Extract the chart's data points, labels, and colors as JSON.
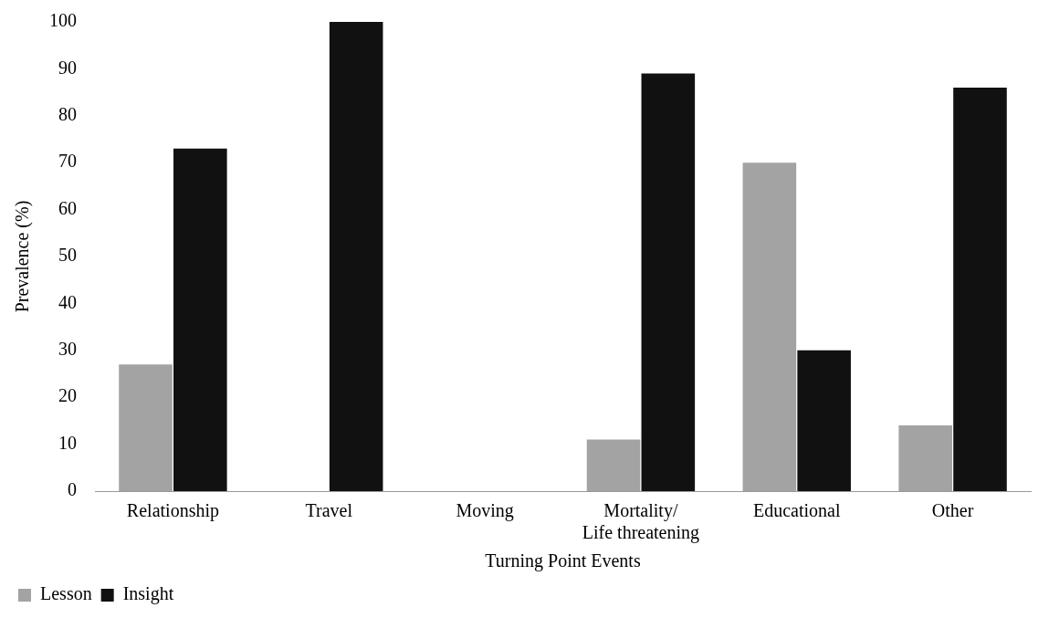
{
  "chart_data": {
    "type": "bar",
    "xlabel": "Turning Point Events",
    "ylabel": "Prevalence (%)",
    "categories": [
      "Relationship",
      "Travel",
      "Moving",
      "Mortality/ Life threatening",
      "Educational",
      "Other"
    ],
    "series": [
      {
        "name": "Lesson",
        "color": "#a3a3a3",
        "values": [
          27,
          0,
          0,
          11,
          70,
          14
        ]
      },
      {
        "name": "Insight",
        "color": "#111111",
        "values": [
          73,
          100,
          0,
          89,
          30,
          86
        ]
      }
    ],
    "ylim": [
      0,
      100
    ],
    "yticks": [
      0,
      10,
      20,
      30,
      40,
      50,
      60,
      70,
      80,
      90,
      100
    ],
    "grid": false,
    "legend": "bottom left"
  }
}
